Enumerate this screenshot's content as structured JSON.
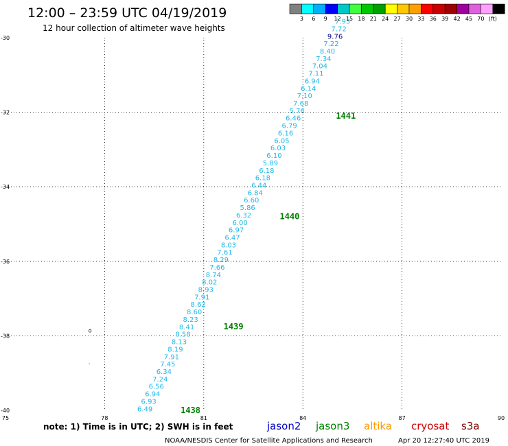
{
  "header": {
    "title": "12:00 – 23:59 UTC 04/19/2019",
    "subtitle": "12 hour collection of altimeter wave heights"
  },
  "color_legend": {
    "swatches": [
      "#808080",
      "#00ffff",
      "#00b0ff",
      "#0000ff",
      "#00c8c8",
      "#40ff40",
      "#00c800",
      "#00a000",
      "#ffff00",
      "#ffc800",
      "#ffa000",
      "#ff0000",
      "#c80000",
      "#a00000",
      "#a000a0",
      "#e060e0",
      "#ffa0ff",
      "#000000"
    ],
    "labels": [
      "3",
      "6",
      "9",
      "12",
      "15",
      "18",
      "21",
      "24",
      "27",
      "30",
      "33",
      "36",
      "39",
      "42",
      "45",
      "70",
      "(ft)"
    ]
  },
  "map": {
    "lon_ticks": [
      "75",
      "78",
      "81",
      "84",
      "87",
      "90"
    ],
    "lat_ticks": [
      "-30",
      "-32",
      "-34",
      "-36",
      "-38",
      "-40"
    ],
    "lon_range": [
      75,
      90
    ],
    "lat_range": [
      -40,
      -30
    ],
    "islands": [
      {
        "lon": 77.55,
        "lat": -37.85,
        "label": "o"
      },
      {
        "lon": 77.55,
        "lat": -38.7,
        "label": "."
      }
    ],
    "track_color": "#1fb8e8",
    "observations": [
      {
        "lat": -39.95,
        "value": "6.49"
      },
      {
        "lat": -39.75,
        "value": "6.93"
      },
      {
        "lat": -39.55,
        "value": "6.94"
      },
      {
        "lat": -39.35,
        "value": "6.56"
      },
      {
        "lat": -39.15,
        "value": "7.24"
      },
      {
        "lat": -38.95,
        "value": "6.34"
      },
      {
        "lat": -38.75,
        "value": "7.45"
      },
      {
        "lat": -38.55,
        "value": "7.91"
      },
      {
        "lat": -38.35,
        "value": "8.19"
      },
      {
        "lat": -38.15,
        "value": "8.13"
      },
      {
        "lat": -37.95,
        "value": "8.58"
      },
      {
        "lat": -37.75,
        "value": "8.41"
      },
      {
        "lat": -37.55,
        "value": "8.23"
      },
      {
        "lat": -37.35,
        "value": "8.60"
      },
      {
        "lat": -37.15,
        "value": "8.62"
      },
      {
        "lat": -36.95,
        "value": "7.91"
      },
      {
        "lat": -36.75,
        "value": "8.93"
      },
      {
        "lat": -36.55,
        "value": "8.02"
      },
      {
        "lat": -36.35,
        "value": "8.74"
      },
      {
        "lat": -36.15,
        "value": "7.66"
      },
      {
        "lat": -35.95,
        "value": "8.29"
      },
      {
        "lat": -35.75,
        "value": "7.61"
      },
      {
        "lat": -35.55,
        "value": "8.03"
      },
      {
        "lat": -35.35,
        "value": "6.47"
      },
      {
        "lat": -35.15,
        "value": "6.97"
      },
      {
        "lat": -34.95,
        "value": "6.00"
      },
      {
        "lat": -34.75,
        "value": "6.32"
      },
      {
        "lat": -34.55,
        "value": "5.86"
      },
      {
        "lat": -34.35,
        "value": "6.60"
      },
      {
        "lat": -34.15,
        "value": "6.84"
      },
      {
        "lat": -33.95,
        "value": "6.44"
      },
      {
        "lat": -33.75,
        "value": "6.18"
      },
      {
        "lat": -33.55,
        "value": "6.18"
      },
      {
        "lat": -33.35,
        "value": "5.89"
      },
      {
        "lat": -33.15,
        "value": "6.10"
      },
      {
        "lat": -32.95,
        "value": "6.03"
      },
      {
        "lat": -32.75,
        "value": "6.05"
      },
      {
        "lat": -32.55,
        "value": "6.16"
      },
      {
        "lat": -32.35,
        "value": "6.79"
      },
      {
        "lat": -32.15,
        "value": "6.46"
      },
      {
        "lat": -31.95,
        "value": "5.76"
      },
      {
        "lat": -31.75,
        "value": "7.68"
      },
      {
        "lat": -31.55,
        "value": "7.10"
      },
      {
        "lat": -31.35,
        "value": "6.14"
      },
      {
        "lat": -31.15,
        "value": "6.94"
      },
      {
        "lat": -30.95,
        "value": "7.11"
      },
      {
        "lat": -30.75,
        "value": "7.04"
      },
      {
        "lat": -30.55,
        "value": "7.34"
      },
      {
        "lat": -30.35,
        "value": "8.40"
      },
      {
        "lat": -30.15,
        "value": "7.22"
      },
      {
        "lat": -29.95,
        "value": "9.76",
        "color": "#000080"
      },
      {
        "lat": -29.75,
        "value": "7.72"
      },
      {
        "lat": -29.55,
        "value": "7.93"
      }
    ],
    "pass_labels": [
      {
        "text": "1438",
        "lon": 80.3,
        "lat": -40
      },
      {
        "text": "1439",
        "lon": 81.6,
        "lat": -37.75
      },
      {
        "text": "1440",
        "lon": 83.3,
        "lat": -34.8
      },
      {
        "text": "1441",
        "lon": 85,
        "lat": -32.1
      }
    ],
    "pass_label_color": "#008000"
  },
  "footer": {
    "note": "note: 1) Time is in UTC; 2) SWH is in feet",
    "satellites": [
      {
        "name": "jason2",
        "color": "#0000cc"
      },
      {
        "name": "jason3",
        "color": "#008000"
      },
      {
        "name": "altika",
        "color": "#ff9900"
      },
      {
        "name": "cryosat",
        "color": "#cc0000"
      },
      {
        "name": "s3a",
        "color": "#800000"
      }
    ],
    "credit": "NOAA/NESDIS Center for Satellite Applications and Research",
    "timestamp": "Apr 20 12:27:40 UTC 2019"
  }
}
